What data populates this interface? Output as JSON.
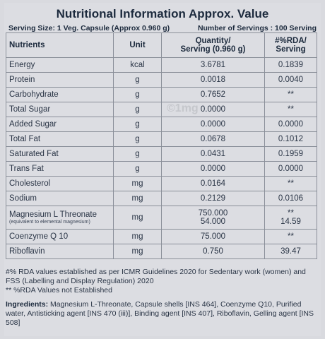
{
  "title": "Nutritional Information Approx. Value",
  "serving_size": "Serving Size: 1 Veg. Capsule (Approx 0.960 g)",
  "servings_count": "Number of Servings : 100 Serving",
  "watermark": "©1mg",
  "headers": {
    "nutrients": "Nutrients",
    "unit": "Unit",
    "qty_line1": "Quantity/",
    "qty_line2": "Serving (0.960 g)",
    "rda_line1": "#%RDA/",
    "rda_line2": "Serving"
  },
  "rows": [
    {
      "name": "Energy",
      "unit": "kcal",
      "qty": "3.6781",
      "rda": "0.1839"
    },
    {
      "name": "Protein",
      "unit": "g",
      "qty": "0.0018",
      "rda": "0.0040"
    },
    {
      "name": "Carbohydrate",
      "unit": "g",
      "qty": "0.7652",
      "rda": "**"
    },
    {
      "name": "Total Sugar",
      "unit": "g",
      "qty": "0.0000",
      "rda": "**"
    },
    {
      "name": "Added Sugar",
      "unit": "g",
      "qty": "0.0000",
      "rda": "0.0000"
    },
    {
      "name": "Total Fat",
      "unit": "g",
      "qty": "0.0678",
      "rda": "0.1012"
    },
    {
      "name": "Saturated Fat",
      "unit": "g",
      "qty": "0.0431",
      "rda": "0.1959"
    },
    {
      "name": "Trans Fat",
      "unit": "g",
      "qty": "0.0000",
      "rda": "0.0000"
    },
    {
      "name": "Cholesterol",
      "unit": "mg",
      "qty": "0.0164",
      "rda": "**"
    },
    {
      "name": "Sodium",
      "unit": "mg",
      "qty": "0.2129",
      "rda": "0.0106"
    }
  ],
  "magnesium": {
    "name": "Magnesium L Threonate",
    "sub": "(equivalent to elemental magnesium)",
    "unit": "mg",
    "qty1": "750.000",
    "qty2": "54.000",
    "rda1": "**",
    "rda2": "14.59"
  },
  "tail_rows": [
    {
      "name": "Coenzyme Q 10",
      "unit": "mg",
      "qty": "75.000",
      "rda": "**"
    },
    {
      "name": "Riboflavin",
      "unit": "mg",
      "qty": "0.750",
      "rda": "39.47"
    }
  ],
  "notes": {
    "line1": "#% RDA values established as per ICMR Guidelines 2020 for Sedentary work (women) and FSS (Labelling and Display Regulation) 2020",
    "line2": "** %RDA Values not Established"
  },
  "ingredients": {
    "label": "Ingredients:",
    "text": " Magnesium L-Threonate, Capsule shells [INS 464], Coenzyme Q10, Purified water, Antisticking agent [INS 470 (iii)], Binding agent [INS 407], Riboflavin, Gelling agent [INS 508]"
  }
}
